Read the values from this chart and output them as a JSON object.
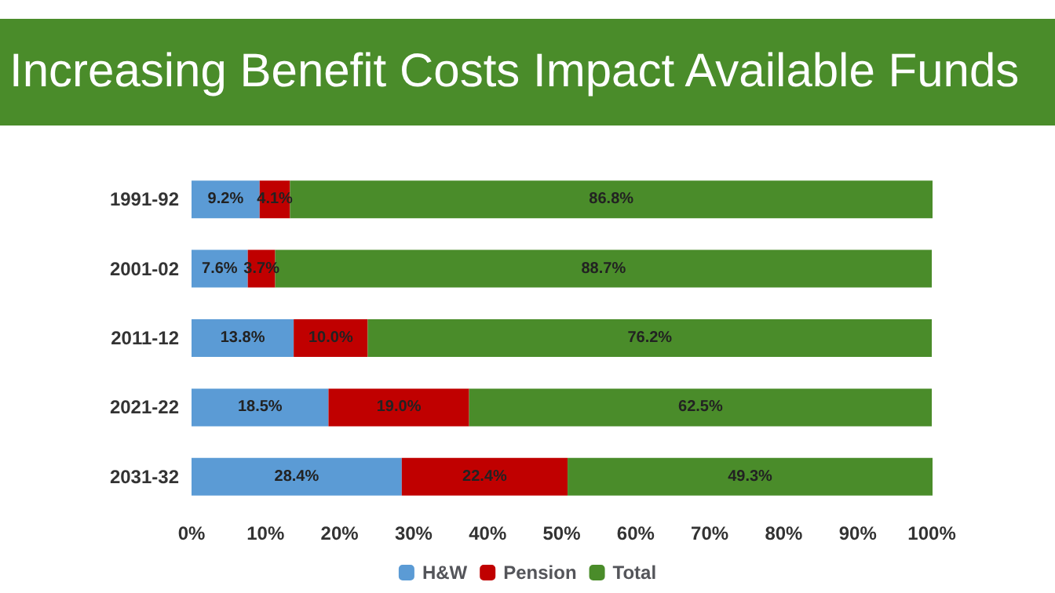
{
  "chart_data": {
    "type": "bar",
    "orientation": "horizontal",
    "stacked": true,
    "title": "Increasing Benefit Costs Impact Available Funds",
    "categories": [
      "1991-92",
      "2001-02",
      "2011-12",
      "2021-22",
      "2031-32"
    ],
    "series": [
      {
        "name": "H&W",
        "color": "#5b9bd5",
        "values": [
          9.2,
          7.6,
          13.8,
          18.5,
          28.4
        ],
        "value_labels": [
          "9.2%",
          "7.6%",
          "13.8%",
          "18.5%",
          "28.4%"
        ]
      },
      {
        "name": "Pension",
        "color": "#c00000",
        "values": [
          4.1,
          3.7,
          10.0,
          19.0,
          22.4
        ],
        "value_labels": [
          "4.1%",
          "3.7%",
          "10.0%",
          "19.0%",
          "22.4%"
        ]
      },
      {
        "name": "Total",
        "color": "#4a8c2a",
        "values": [
          86.8,
          88.7,
          76.2,
          62.5,
          49.3
        ],
        "value_labels": [
          "86.8%",
          "88.7%",
          "76.2%",
          "62.5%",
          "49.3%"
        ]
      }
    ],
    "xlim": [
      0,
      100.1
    ],
    "xticks": [
      {
        "value": 0,
        "label": "0%"
      },
      {
        "value": 10,
        "label": "10%"
      },
      {
        "value": 20,
        "label": "20%"
      },
      {
        "value": 30,
        "label": "30%"
      },
      {
        "value": 40,
        "label": "40%"
      },
      {
        "value": 50,
        "label": "50%"
      },
      {
        "value": 60,
        "label": "60%"
      },
      {
        "value": 70,
        "label": "70%"
      },
      {
        "value": 80,
        "label": "80%"
      },
      {
        "value": 90,
        "label": "90%"
      },
      {
        "value": 100,
        "label": "100%"
      }
    ],
    "grid": false,
    "legend": "bottom"
  }
}
